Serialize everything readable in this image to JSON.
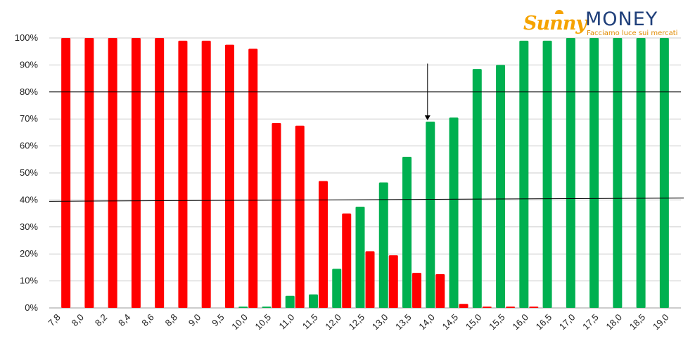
{
  "logo": {
    "brand_part1": "Sunny",
    "brand_part2": "MONEY",
    "tagline": "Facciamo luce sui mercati"
  },
  "colors": {
    "red": "#ff0000",
    "green": "#00b050",
    "grid": "#cccccc",
    "axis": "#999999",
    "line": "#000000"
  },
  "chart_data": {
    "type": "bar",
    "title": "",
    "xlabel": "",
    "ylabel": "",
    "ylim": [
      0,
      100
    ],
    "yticks": [
      "0%",
      "10%",
      "20%",
      "30%",
      "40%",
      "50%",
      "60%",
      "70%",
      "80%",
      "90%",
      "100%"
    ],
    "grid": true,
    "categories": [
      "7,8",
      "8,0",
      "8,2",
      "8,4",
      "8,6",
      "8,8",
      "9,0",
      "9,5",
      "10,0",
      "10,5",
      "11,0",
      "11,5",
      "12,0",
      "12,5",
      "13,0",
      "13,5",
      "14,0",
      "14,5",
      "15,0",
      "15,5",
      "16,0",
      "16,5",
      "17,0",
      "17,5",
      "18,0",
      "18,5",
      "19,0"
    ],
    "series": [
      {
        "color": "#00b050",
        "values": [
          0,
          0,
          0,
          0,
          0,
          0,
          0,
          0,
          0.5,
          0.5,
          4.5,
          5,
          14.5,
          37.5,
          46.5,
          56,
          69,
          70.5,
          88.5,
          90,
          99,
          99,
          100,
          100,
          100,
          100,
          100
        ]
      },
      {
        "color": "#ff0000",
        "values": [
          100,
          100,
          100,
          100,
          100,
          99,
          99,
          97.5,
          96,
          68.5,
          67.5,
          47,
          35,
          21,
          19.5,
          13,
          12.5,
          1.5,
          0.5,
          0.5,
          0.5,
          0,
          0,
          0,
          0,
          0,
          0
        ]
      }
    ],
    "annotations": [
      {
        "type": "horizontal-line",
        "y": 80
      },
      {
        "type": "trend-line",
        "from": {
          "x": "7,8",
          "y": 39.5
        },
        "to": {
          "x": "19,0",
          "y": 40.7
        }
      },
      {
        "type": "arrow-down",
        "x": "14,0",
        "from_y": 90.5,
        "to_y": 69.5
      }
    ]
  }
}
